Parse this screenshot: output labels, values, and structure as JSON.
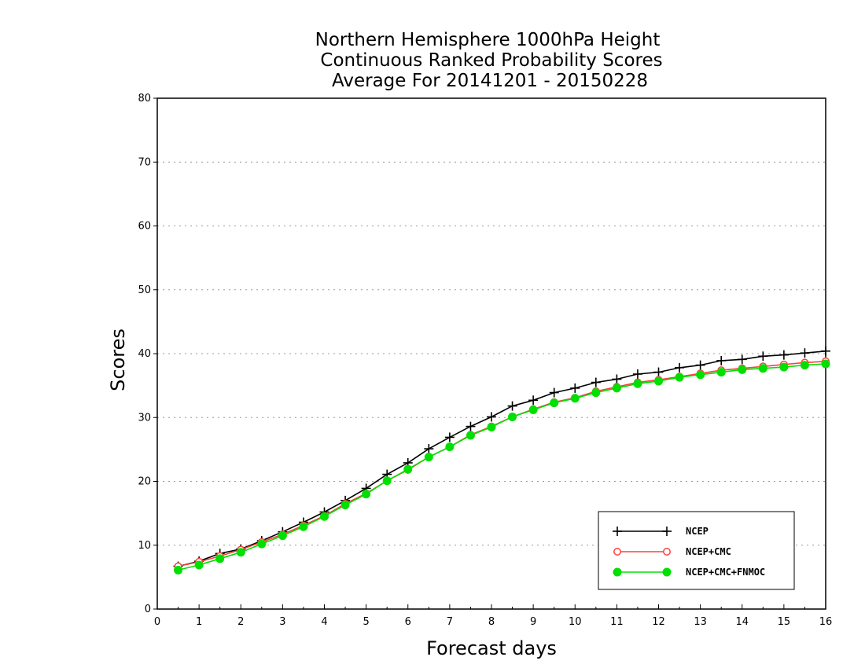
{
  "chart_data": {
    "type": "line",
    "title": [
      "Northern Hemisphere 1000hPa Height",
      "Continuous Ranked Probability Scores",
      "Average For 20141201 - 20150228"
    ],
    "xlabel": "Forecast days",
    "ylabel": "Scores",
    "xlim": [
      0,
      16
    ],
    "ylim": [
      0,
      80
    ],
    "xticks": [
      "0",
      "1",
      "2",
      "3",
      "4",
      "5",
      "6",
      "7",
      "8",
      "9",
      "10",
      "11",
      "12",
      "13",
      "14",
      "15",
      "16"
    ],
    "yticks": [
      "0",
      "10",
      "20",
      "30",
      "40",
      "50",
      "60",
      "70",
      "80"
    ],
    "grid": "horizontal dotted",
    "legend_position": "bottom-right",
    "x": [
      0.5,
      1,
      1.5,
      2,
      2.5,
      3,
      3.5,
      4,
      4.5,
      5,
      5.5,
      6,
      6.5,
      7,
      7.5,
      8,
      8.5,
      9,
      9.5,
      10,
      10.5,
      11,
      11.5,
      12,
      12.5,
      13,
      13.5,
      14,
      14.5,
      15,
      15.5,
      16
    ],
    "series": [
      {
        "name": "NCEP",
        "color": "#000000",
        "marker": "plus",
        "values": [
          6.7,
          7.5,
          8.7,
          9.4,
          10.7,
          12.1,
          13.6,
          15.2,
          17.0,
          18.9,
          21.1,
          22.9,
          25.1,
          26.9,
          28.6,
          30.1,
          31.8,
          32.7,
          33.9,
          34.6,
          35.5,
          36.0,
          36.8,
          37.1,
          37.8,
          38.2,
          38.9,
          39.1,
          39.6,
          39.8,
          40.1,
          40.4
        ]
      },
      {
        "name": "NCEP+CMC",
        "color": "#ff4040",
        "marker": "open-circle",
        "values": [
          6.7,
          7.4,
          8.3,
          9.3,
          10.5,
          11.7,
          13.1,
          14.6,
          16.5,
          18.1,
          20.1,
          21.8,
          23.8,
          25.4,
          27.3,
          28.6,
          30.1,
          31.3,
          32.4,
          33.1,
          34.1,
          34.8,
          35.5,
          35.9,
          36.4,
          36.9,
          37.4,
          37.7,
          38.0,
          38.3,
          38.6,
          38.8
        ]
      },
      {
        "name": "NCEP+CMC+FNMOC",
        "color": "#00e000",
        "marker": "filled-circle",
        "values": [
          6.1,
          6.9,
          7.9,
          8.9,
          10.2,
          11.5,
          12.9,
          14.5,
          16.3,
          18.0,
          20.1,
          21.9,
          23.8,
          25.4,
          27.2,
          28.5,
          30.1,
          31.2,
          32.3,
          33.0,
          33.9,
          34.6,
          35.3,
          35.7,
          36.3,
          36.7,
          37.1,
          37.5,
          37.7,
          37.9,
          38.2,
          38.4
        ]
      }
    ]
  }
}
